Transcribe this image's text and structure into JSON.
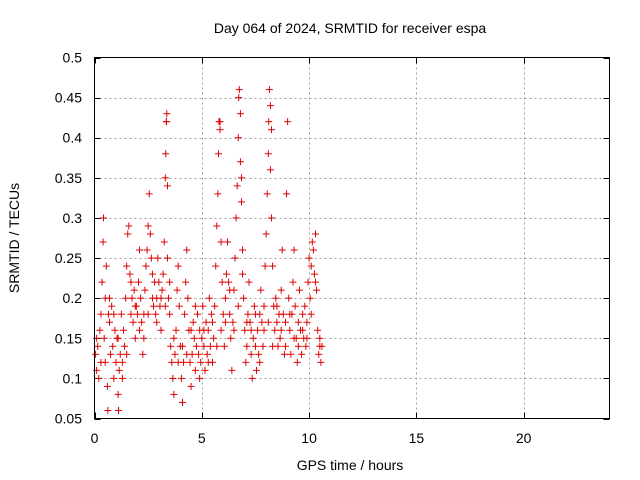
{
  "chart_data": {
    "type": "scatter",
    "title": "Day 064 of 2024, SRMTID for receiver espa",
    "xlabel": "GPS time / hours",
    "ylabel": "SRMTID / TECUs",
    "xlim": [
      0,
      24
    ],
    "ylim": [
      0.05,
      0.5
    ],
    "xticks": [
      0,
      5,
      10,
      15,
      20
    ],
    "xtick_labels": [
      "0",
      "5",
      "10",
      "15",
      "20"
    ],
    "yticks": [
      0.05,
      0.1,
      0.15,
      0.2,
      0.25,
      0.3,
      0.35,
      0.4,
      0.45,
      0.5
    ],
    "ytick_labels": [
      "0.05",
      "0.1",
      "0.15",
      "0.2",
      "0.25",
      "0.3",
      "0.35",
      "0.4",
      "0.45",
      "0.5"
    ],
    "grid": true,
    "marker": "+",
    "color": "#e00000",
    "series": [
      {
        "points": [
          [
            0.05,
            0.13
          ],
          [
            0.1,
            0.11
          ],
          [
            0.15,
            0.14
          ],
          [
            0.2,
            0.1
          ],
          [
            0.25,
            0.16
          ],
          [
            0.3,
            0.12
          ],
          [
            0.35,
            0.22
          ],
          [
            0.4,
            0.27
          ],
          [
            0.42,
            0.3
          ],
          [
            0.45,
            0.15
          ],
          [
            0.5,
            0.2
          ],
          [
            0.55,
            0.24
          ],
          [
            0.6,
            0.09
          ],
          [
            0.62,
            0.06
          ],
          [
            0.65,
            0.18
          ],
          [
            0.7,
            0.17
          ],
          [
            0.75,
            0.13
          ],
          [
            0.8,
            0.19
          ],
          [
            0.85,
            0.14
          ],
          [
            0.9,
            0.1
          ],
          [
            0.95,
            0.16
          ],
          [
            1.0,
            0.12
          ],
          [
            1.05,
            0.15
          ],
          [
            1.1,
            0.08
          ],
          [
            1.12,
            0.06
          ],
          [
            1.15,
            0.11
          ],
          [
            1.2,
            0.13
          ],
          [
            1.25,
            0.18
          ],
          [
            1.3,
            0.12
          ],
          [
            1.35,
            0.16
          ],
          [
            1.4,
            0.14
          ],
          [
            1.45,
            0.2
          ],
          [
            1.5,
            0.24
          ],
          [
            1.55,
            0.28
          ],
          [
            1.6,
            0.29
          ],
          [
            1.65,
            0.23
          ],
          [
            1.7,
            0.18
          ],
          [
            1.75,
            0.2
          ],
          [
            1.8,
            0.17
          ],
          [
            1.85,
            0.21
          ],
          [
            1.9,
            0.15
          ],
          [
            1.95,
            0.19
          ],
          [
            2.0,
            0.18
          ],
          [
            2.05,
            0.22
          ],
          [
            2.1,
            0.26
          ],
          [
            2.15,
            0.2
          ],
          [
            2.2,
            0.17
          ],
          [
            2.25,
            0.13
          ],
          [
            2.3,
            0.18
          ],
          [
            2.35,
            0.21
          ],
          [
            2.4,
            0.24
          ],
          [
            2.45,
            0.26
          ],
          [
            2.5,
            0.29
          ],
          [
            2.55,
            0.33
          ],
          [
            2.6,
            0.28
          ],
          [
            2.65,
            0.25
          ],
          [
            2.7,
            0.2
          ],
          [
            2.75,
            0.19
          ],
          [
            2.8,
            0.22
          ],
          [
            2.85,
            0.18
          ],
          [
            2.9,
            0.2
          ],
          [
            2.95,
            0.25
          ],
          [
            3.0,
            0.22
          ],
          [
            3.05,
            0.19
          ],
          [
            3.1,
            0.16
          ],
          [
            3.15,
            0.21
          ],
          [
            3.2,
            0.23
          ],
          [
            3.25,
            0.27
          ],
          [
            3.3,
            0.35
          ],
          [
            3.32,
            0.38
          ],
          [
            3.35,
            0.42
          ],
          [
            3.37,
            0.43
          ],
          [
            3.4,
            0.25
          ],
          [
            3.45,
            0.2
          ],
          [
            3.5,
            0.18
          ],
          [
            3.55,
            0.14
          ],
          [
            3.6,
            0.12
          ],
          [
            3.65,
            0.1
          ],
          [
            3.7,
            0.08
          ],
          [
            3.75,
            0.13
          ],
          [
            3.8,
            0.16
          ],
          [
            3.85,
            0.21
          ],
          [
            3.9,
            0.24
          ],
          [
            3.95,
            0.19
          ],
          [
            4.0,
            0.14
          ],
          [
            4.05,
            0.1
          ],
          [
            4.1,
            0.07
          ],
          [
            4.15,
            0.12
          ],
          [
            4.2,
            0.18
          ],
          [
            4.25,
            0.22
          ],
          [
            4.3,
            0.26
          ],
          [
            4.35,
            0.2
          ],
          [
            4.4,
            0.16
          ],
          [
            4.45,
            0.12
          ],
          [
            4.5,
            0.09
          ],
          [
            4.55,
            0.13
          ],
          [
            4.6,
            0.17
          ],
          [
            4.65,
            0.15
          ],
          [
            4.7,
            0.11
          ],
          [
            4.75,
            0.14
          ],
          [
            4.8,
            0.18
          ],
          [
            4.85,
            0.13
          ],
          [
            4.9,
            0.16
          ],
          [
            4.95,
            0.12
          ],
          [
            5.0,
            0.15
          ],
          [
            5.05,
            0.19
          ],
          [
            5.1,
            0.14
          ],
          [
            5.15,
            0.11
          ],
          [
            5.2,
            0.17
          ],
          [
            5.25,
            0.13
          ],
          [
            5.3,
            0.16
          ],
          [
            5.35,
            0.2
          ],
          [
            5.4,
            0.14
          ],
          [
            5.45,
            0.18
          ],
          [
            5.5,
            0.12
          ],
          [
            5.55,
            0.15
          ],
          [
            5.6,
            0.19
          ],
          [
            5.65,
            0.24
          ],
          [
            5.7,
            0.29
          ],
          [
            5.75,
            0.33
          ],
          [
            5.78,
            0.38
          ],
          [
            5.8,
            0.42
          ],
          [
            5.85,
            0.41
          ],
          [
            5.9,
            0.27
          ],
          [
            5.95,
            0.22
          ],
          [
            6.0,
            0.18
          ],
          [
            6.05,
            0.14
          ],
          [
            6.1,
            0.2
          ],
          [
            6.15,
            0.23
          ],
          [
            6.2,
            0.27
          ],
          [
            6.25,
            0.22
          ],
          [
            6.3,
            0.18
          ],
          [
            6.35,
            0.15
          ],
          [
            6.4,
            0.11
          ],
          [
            6.45,
            0.17
          ],
          [
            6.5,
            0.21
          ],
          [
            6.55,
            0.25
          ],
          [
            6.6,
            0.3
          ],
          [
            6.65,
            0.34
          ],
          [
            6.7,
            0.4
          ],
          [
            6.72,
            0.45
          ],
          [
            6.75,
            0.46
          ],
          [
            6.8,
            0.37
          ],
          [
            6.85,
            0.32
          ],
          [
            6.9,
            0.26
          ],
          [
            6.95,
            0.2
          ],
          [
            7.0,
            0.16
          ],
          [
            7.05,
            0.12
          ],
          [
            7.1,
            0.14
          ],
          [
            7.15,
            0.18
          ],
          [
            7.2,
            0.22
          ],
          [
            7.25,
            0.17
          ],
          [
            7.3,
            0.13
          ],
          [
            7.35,
            0.1
          ],
          [
            7.4,
            0.15
          ],
          [
            7.45,
            0.19
          ],
          [
            7.5,
            0.14
          ],
          [
            7.55,
            0.11
          ],
          [
            7.6,
            0.16
          ],
          [
            7.65,
            0.13
          ],
          [
            7.7,
            0.18
          ],
          [
            7.75,
            0.21
          ],
          [
            7.8,
            0.17
          ],
          [
            7.85,
            0.14
          ],
          [
            7.9,
            0.19
          ],
          [
            7.95,
            0.24
          ],
          [
            8.0,
            0.28
          ],
          [
            8.05,
            0.33
          ],
          [
            8.1,
            0.38
          ],
          [
            8.12,
            0.42
          ],
          [
            8.15,
            0.46
          ],
          [
            8.2,
            0.36
          ],
          [
            8.25,
            0.3
          ],
          [
            8.3,
            0.24
          ],
          [
            8.35,
            0.19
          ],
          [
            8.4,
            0.16
          ],
          [
            8.45,
            0.2
          ],
          [
            8.5,
            0.17
          ],
          [
            8.55,
            0.14
          ],
          [
            8.6,
            0.18
          ],
          [
            8.65,
            0.15
          ],
          [
            8.7,
            0.21
          ],
          [
            8.75,
            0.26
          ],
          [
            8.8,
            0.18
          ],
          [
            8.85,
            0.13
          ],
          [
            8.9,
            0.17
          ],
          [
            8.95,
            0.33
          ],
          [
            9.0,
            0.42
          ],
          [
            9.05,
            0.2
          ],
          [
            9.1,
            0.16
          ],
          [
            9.15,
            0.13
          ],
          [
            9.2,
            0.18
          ],
          [
            9.25,
            0.22
          ],
          [
            9.3,
            0.26
          ],
          [
            9.35,
            0.19
          ],
          [
            9.4,
            0.15
          ],
          [
            9.45,
            0.12
          ],
          [
            9.5,
            0.17
          ],
          [
            9.55,
            0.21
          ],
          [
            9.6,
            0.16
          ],
          [
            9.65,
            0.13
          ],
          [
            9.7,
            0.18
          ],
          [
            9.75,
            0.15
          ],
          [
            9.8,
            0.19
          ],
          [
            9.85,
            0.14
          ],
          [
            9.9,
            0.17
          ],
          [
            9.95,
            0.22
          ],
          [
            10.0,
            0.25
          ],
          [
            10.05,
            0.2
          ],
          [
            10.1,
            0.24
          ],
          [
            10.15,
            0.27
          ],
          [
            10.2,
            0.26
          ],
          [
            10.25,
            0.23
          ],
          [
            10.3,
            0.28
          ],
          [
            10.35,
            0.21
          ],
          [
            10.4,
            0.16
          ],
          [
            10.45,
            0.13
          ],
          [
            10.5,
            0.15
          ],
          [
            10.55,
            0.12
          ],
          [
            10.6,
            0.14
          ],
          [
            0.1,
            0.15
          ],
          [
            0.3,
            0.18
          ],
          [
            0.5,
            0.12
          ],
          [
            0.7,
            0.2
          ],
          [
            0.9,
            0.18
          ],
          [
            1.1,
            0.15
          ],
          [
            1.3,
            0.1
          ],
          [
            1.5,
            0.13
          ],
          [
            1.7,
            0.22
          ],
          [
            1.9,
            0.19
          ],
          [
            2.1,
            0.16
          ],
          [
            2.3,
            0.15
          ],
          [
            2.5,
            0.18
          ],
          [
            2.7,
            0.23
          ],
          [
            2.9,
            0.17
          ],
          [
            3.1,
            0.2
          ],
          [
            3.3,
            0.19
          ],
          [
            3.5,
            0.22
          ],
          [
            3.7,
            0.15
          ],
          [
            3.9,
            0.12
          ],
          [
            4.1,
            0.14
          ],
          [
            4.3,
            0.13
          ],
          [
            4.5,
            0.16
          ],
          [
            4.7,
            0.19
          ],
          [
            4.9,
            0.1
          ],
          [
            5.1,
            0.16
          ],
          [
            5.3,
            0.12
          ],
          [
            5.5,
            0.17
          ],
          [
            5.7,
            0.14
          ],
          [
            5.9,
            0.16
          ],
          [
            6.1,
            0.17
          ],
          [
            6.3,
            0.21
          ],
          [
            6.5,
            0.16
          ],
          [
            6.7,
            0.19
          ],
          [
            6.9,
            0.23
          ],
          [
            7.1,
            0.17
          ],
          [
            7.3,
            0.16
          ],
          [
            7.5,
            0.18
          ],
          [
            7.7,
            0.12
          ],
          [
            7.9,
            0.16
          ],
          [
            8.1,
            0.17
          ],
          [
            8.3,
            0.14
          ],
          [
            8.5,
            0.19
          ],
          [
            8.7,
            0.16
          ],
          [
            8.9,
            0.14
          ],
          [
            9.1,
            0.18
          ],
          [
            9.3,
            0.15
          ],
          [
            9.5,
            0.14
          ],
          [
            9.7,
            0.16
          ],
          [
            9.9,
            0.15
          ],
          [
            10.1,
            0.18
          ],
          [
            10.3,
            0.22
          ],
          [
            10.5,
            0.14
          ],
          [
            3.35,
            0.42
          ],
          [
            5.85,
            0.42
          ],
          [
            6.8,
            0.43
          ],
          [
            8.2,
            0.44
          ],
          [
            3.4,
            0.34
          ],
          [
            6.85,
            0.35
          ],
          [
            8.25,
            0.41
          ]
        ]
      }
    ]
  }
}
